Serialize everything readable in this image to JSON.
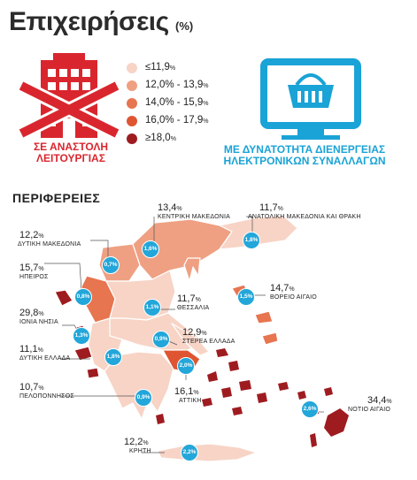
{
  "title": "Επιχειρήσεις",
  "title_unit": "(%)",
  "closed_caption": "ΣΕ ΑΝΑΣΤΟΛΗ ΛΕΙΤΟΥΡΓΙΑΣ",
  "online_caption_1": "ΜΕ ΔΥΝΑΤΟΤΗΤΑ ΔΙΕΝΕΡΓΕΙΑΣ",
  "online_caption_2": "ΗΛΕΚΤΡΟΝΙΚΩΝ ΣΥΝΑΛΛΑΓΩΝ",
  "regions_title": "ΠΕΡΙΦΕΡΕΙΕΣ",
  "icons": {
    "closed": "closed-building-icon",
    "online": "online-shop-monitor-icon"
  },
  "colors": {
    "red": "#d9262e",
    "blue": "#23a6d9",
    "c1": "#f7d4c6",
    "c2": "#efa083",
    "c3": "#e77550",
    "c4": "#df5532",
    "c5": "#9e1c20"
  },
  "legend": [
    {
      "label": "≤11,9",
      "unit": "%",
      "color": "#f7d4c6"
    },
    {
      "label": "12,0% - 13,9",
      "unit": "%",
      "color": "#efa083"
    },
    {
      "label": "14,0% - 15,9",
      "unit": "%",
      "color": "#e77550"
    },
    {
      "label": "16,0% - 17,9",
      "unit": "%",
      "color": "#df5532"
    },
    {
      "label": "≥18,0",
      "unit": "%",
      "color": "#9e1c20"
    }
  ],
  "regions": [
    {
      "name": "ΚΕΝΤΡΙΚΗ ΜΑΚΕΔΟΝΙΑ",
      "closed": "13,4",
      "online": "1,6%"
    },
    {
      "name": "ΑΝΑΤΟΛΙΚΗ ΜΑΚΕΔΟΝΙΑ ΚΑΙ ΘΡΑΚΗ",
      "closed": "11,7",
      "online": "1,8%"
    },
    {
      "name": "ΔΥΤΙΚΗ ΜΑΚΕΔΟΝΙΑ",
      "closed": "12,2",
      "online": "0,7%"
    },
    {
      "name": "ΗΠΕΙΡΟΣ",
      "closed": "15,7",
      "online": "0,8%"
    },
    {
      "name": "ΘΕΣΣΑΛΙΑ",
      "closed": "11,7",
      "online": "1,1%"
    },
    {
      "name": "ΒΟΡΕΙΟ ΑΙΓΑΙΟ",
      "closed": "14,7",
      "online": "1,5%"
    },
    {
      "name": "ΙΟΝΙΑ ΝΗΣΙΑ",
      "closed": "29,8",
      "online": "1,3%"
    },
    {
      "name": "ΔΥΤΙΚΗ ΕΛΛΑΔΑ",
      "closed": "11,1",
      "online": "1,8%"
    },
    {
      "name": "ΣΤΕΡΕΑ ΕΛΛΑΔΑ",
      "closed": "12,9",
      "online": "0,9%"
    },
    {
      "name": "ΑΤΤΙΚΗ",
      "closed": "16,1",
      "online": "2,0%"
    },
    {
      "name": "ΠΕΛΟΠΟΝΝΗΣΟΣ",
      "closed": "10,7",
      "online": "0,9%"
    },
    {
      "name": "ΝΟΤΙΟ ΑΙΓΑΙΟ",
      "closed": "34,4",
      "online": "2,6%"
    },
    {
      "name": "ΚΡΗΤΗ",
      "closed": "12,2",
      "online": "2,2%"
    }
  ],
  "pct_sign": "%"
}
